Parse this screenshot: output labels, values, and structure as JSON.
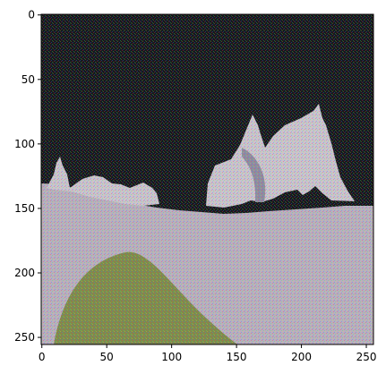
{
  "chart_data": {
    "type": "heatmap",
    "subtype": "image",
    "title": "",
    "xlabel": "",
    "ylabel": "",
    "xlim": [
      -0.5,
      255.5
    ],
    "ylim": [
      255.5,
      -0.5
    ],
    "y_inverted": true,
    "grid": false,
    "xticks": [
      0,
      50,
      100,
      150,
      200,
      250
    ],
    "yticks": [
      0,
      50,
      100,
      150,
      200,
      250
    ],
    "xtick_labels": [
      "0",
      "50",
      "100",
      "150",
      "200",
      "250"
    ],
    "ytick_labels": [
      "0",
      "50",
      "100",
      "150",
      "200",
      "250"
    ],
    "image": {
      "width": 256,
      "height": 256,
      "description_colors": {
        "sky": "#16181f",
        "sky_noise": "#3a4a2a",
        "horse": "#c9c2cf",
        "horse_shadow": "#8f8aa2",
        "ground": "#b8aec0",
        "grass": "#7f8a4d",
        "grass_dark": "#5b6438"
      }
    }
  }
}
